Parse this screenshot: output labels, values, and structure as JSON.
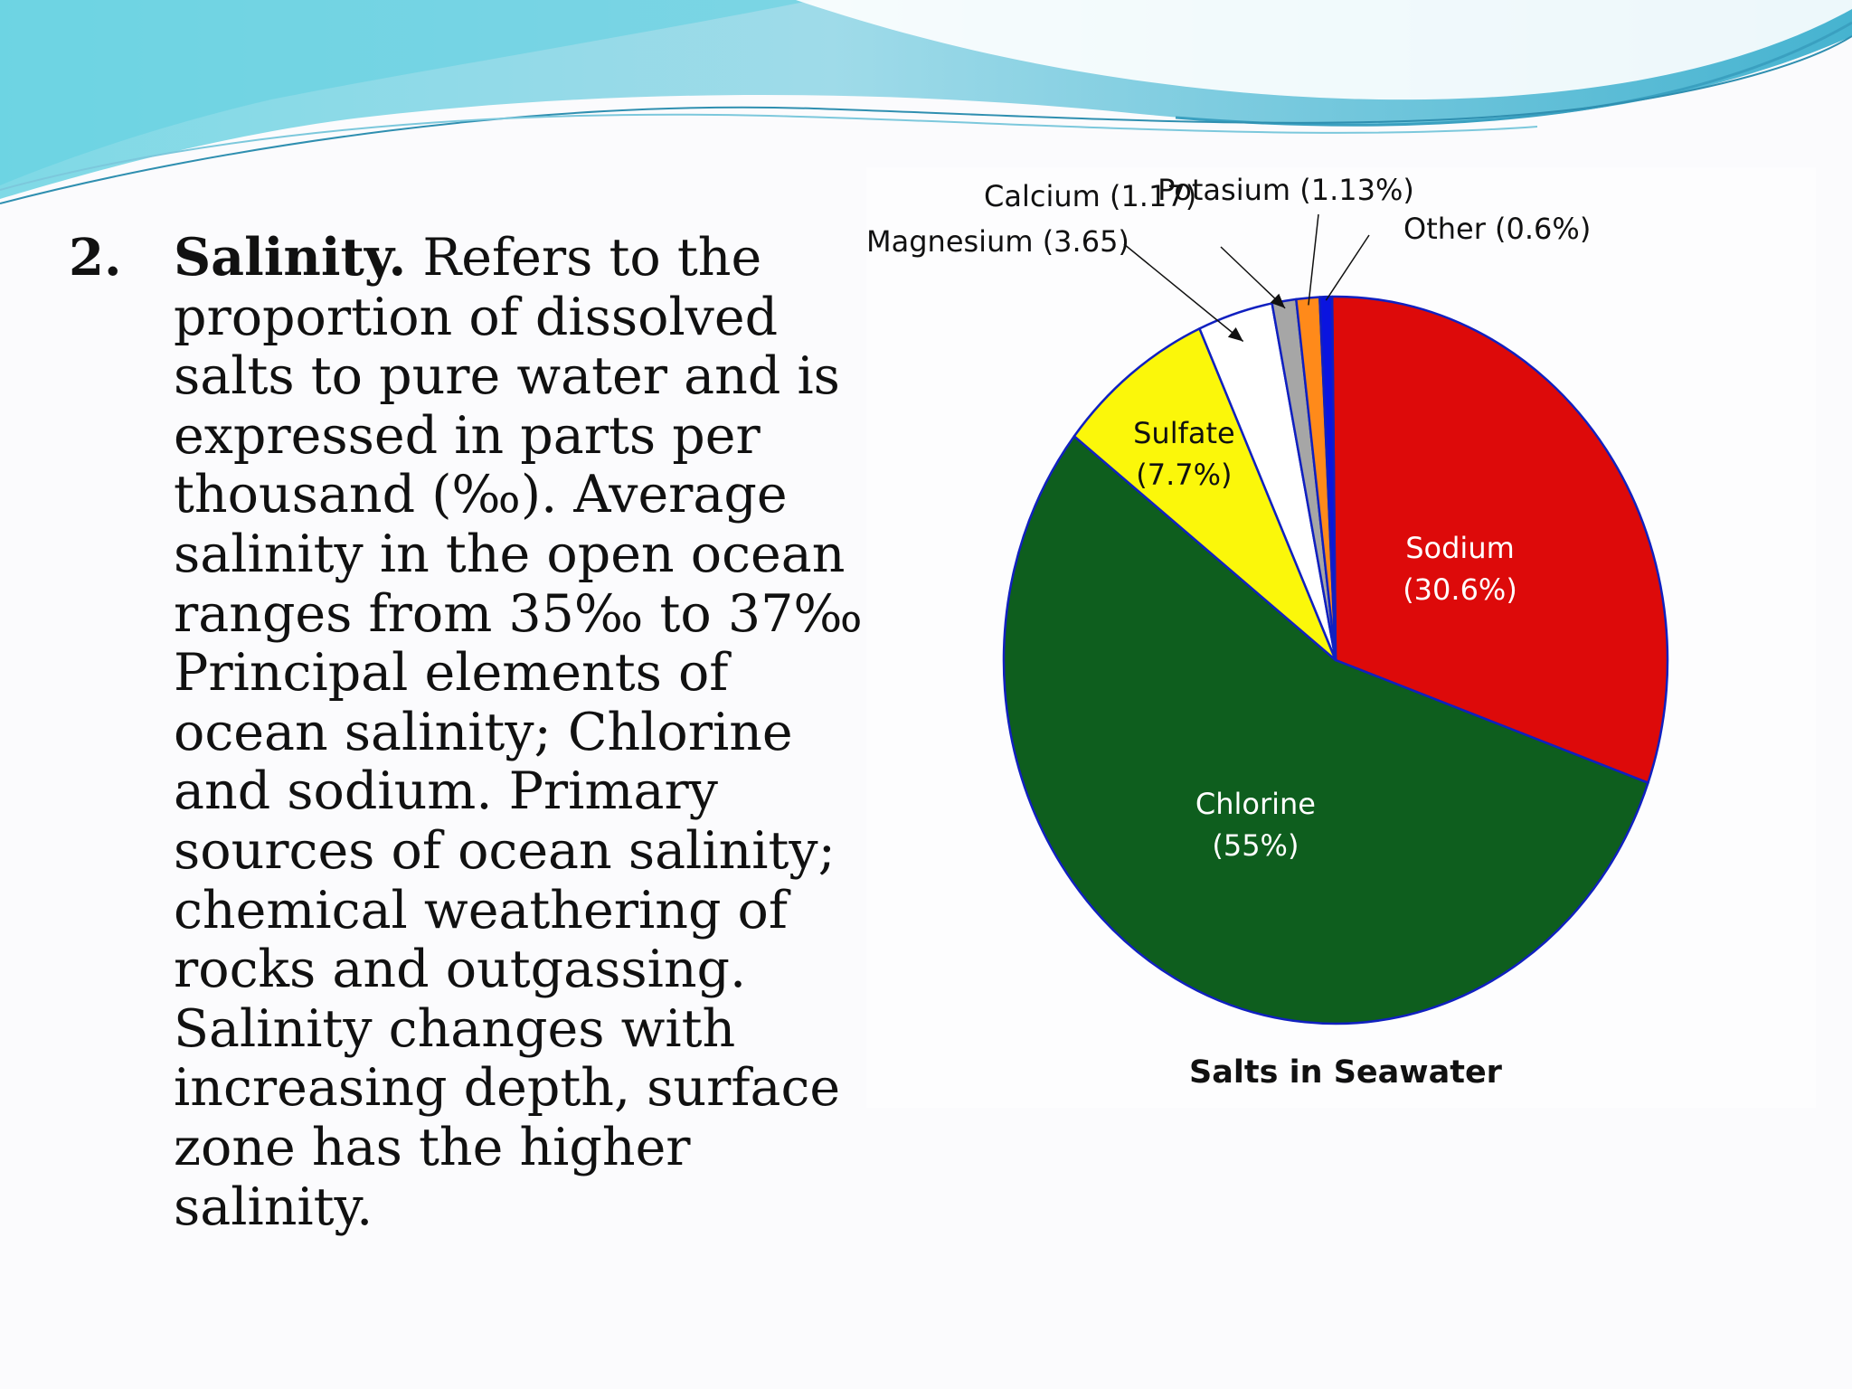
{
  "slide": {
    "item_number": "2.",
    "lead_word": "Salinity.",
    "first_line_rest": " Refers to the",
    "lines": [
      "proportion  of dissolved",
      "salts to pure water and is",
      "expressed in parts per",
      "thousand (‰). Average",
      "salinity in the open ocean",
      "ranges from 35‰ to 37‰.",
      "Principal elements of",
      "ocean salinity; Chlorine",
      "and sodium. Primary",
      "sources of ocean salinity;",
      "chemical weathering of",
      "rocks and outgassing.",
      "Salinity changes with",
      "increasing depth, surface",
      "zone has the higher",
      "salinity."
    ]
  },
  "colors": {
    "wave_light": "#a8e6ef",
    "wave_dark": "#2fa6c4",
    "pie_outline": "#1020c0",
    "label_inside": "#ffffff",
    "label_outside": "#111111"
  },
  "chart_data": {
    "type": "pie",
    "title": "Salts in Seawater",
    "slices": [
      {
        "name": "Sodium",
        "value": 30.6,
        "line1": "Sodium",
        "line2": "(30.6%)",
        "color": "#dd0a0a",
        "label_pos": "inside"
      },
      {
        "name": "Chlorine",
        "value": 55,
        "line1": "Chlorine",
        "line2": "(55%)",
        "color": "#0e5e1e",
        "label_pos": "inside"
      },
      {
        "name": "Sulfate",
        "value": 7.7,
        "line1": "Sulfate",
        "line2": "(7.7%)",
        "color": "#fbf70a",
        "label_pos": "inside"
      },
      {
        "name": "Magnesium",
        "value": 3.65,
        "line1": "Magnesium (3.65)",
        "line2": "",
        "color": "#ffffff",
        "label_pos": "outside"
      },
      {
        "name": "Calcium",
        "value": 1.17,
        "line1": "Calcium (1.17)",
        "line2": "",
        "color": "#a6a6a6",
        "label_pos": "outside"
      },
      {
        "name": "Potasium",
        "value": 1.13,
        "line1": "Potasium (1.13%)",
        "line2": "",
        "color": "#ff8a1a",
        "label_pos": "outside"
      },
      {
        "name": "Other",
        "value": 0.6,
        "line1": "Other (0.6%)",
        "line2": "",
        "color": "#0a14e0",
        "label_pos": "outside"
      }
    ]
  }
}
